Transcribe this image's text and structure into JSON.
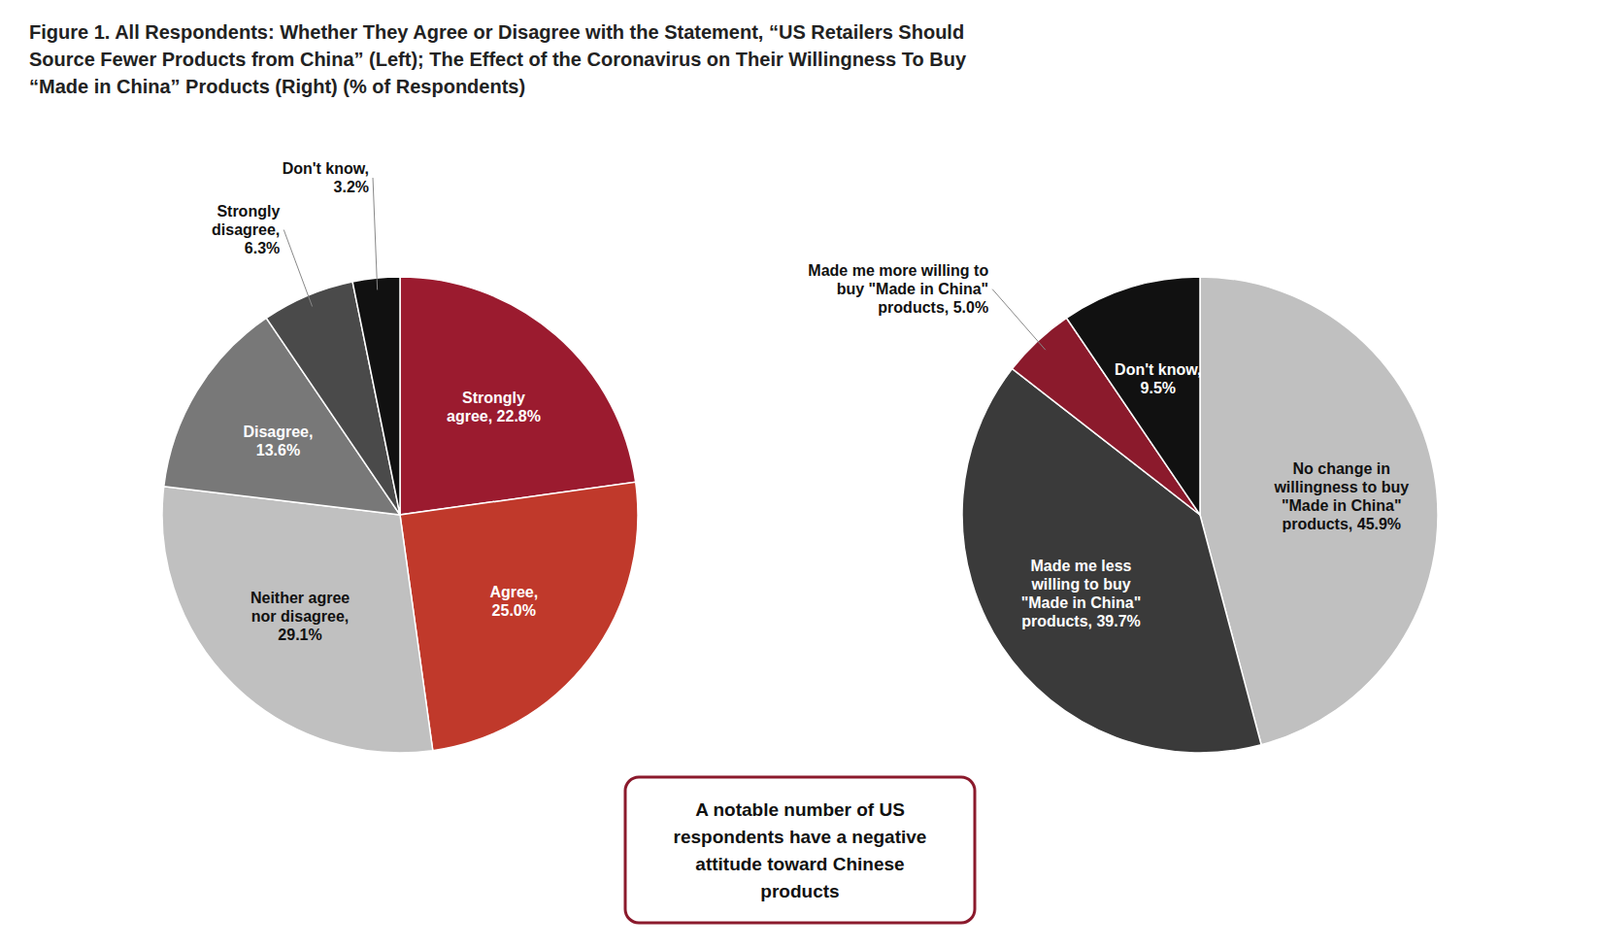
{
  "chart_data": [
    {
      "type": "pie",
      "title": "Figure 1. All Respondents: Whether They Agree or Disagree with the Statement, “US Retailers Should\nSource Fewer Products from China” (Left); The Effect of the Coronavirus on Their Willingness To Buy\n“Made in China” Products (Right) (% of Respondents)",
      "values": [
        22.8,
        25.0,
        29.1,
        13.6,
        6.3,
        3.2
      ],
      "value_labels": [
        "Strongly\nagree, 22.8%",
        "Agree,\n25.0%",
        "Neither agree\nnor disagree,\n29.1%",
        "Disagree,\n13.6%",
        "Strongly\ndisagree,\n6.3%",
        "Don't know,\n3.2%"
      ],
      "colors": [
        "#9B1B2F",
        "#C0392B",
        "#C0C0C0",
        "#787878",
        "#4A4A4A",
        "#111111"
      ],
      "data_labels": true,
      "annotation": "A notable number of US\nrespondents have a negative\nattitude toward Chinese\nproducts"
    },
    {
      "type": "pie",
      "values": [
        45.9,
        39.7,
        5.0,
        9.5
      ],
      "value_labels": [
        "No change in\nwillingness to buy\n\"Made in China\"\nproducts, 45.9%",
        "Made me less\nwilling to buy\n\"Made in China\"\nproducts, 39.7%",
        "Made me more willing to\nbuy \"Made in China\"\nproducts, 5.0%",
        "Don't know,\n9.5%"
      ],
      "colors": [
        "#C0C0C0",
        "#3A3A3A",
        "#8B1A2C",
        "#111111"
      ],
      "data_labels": true
    }
  ]
}
